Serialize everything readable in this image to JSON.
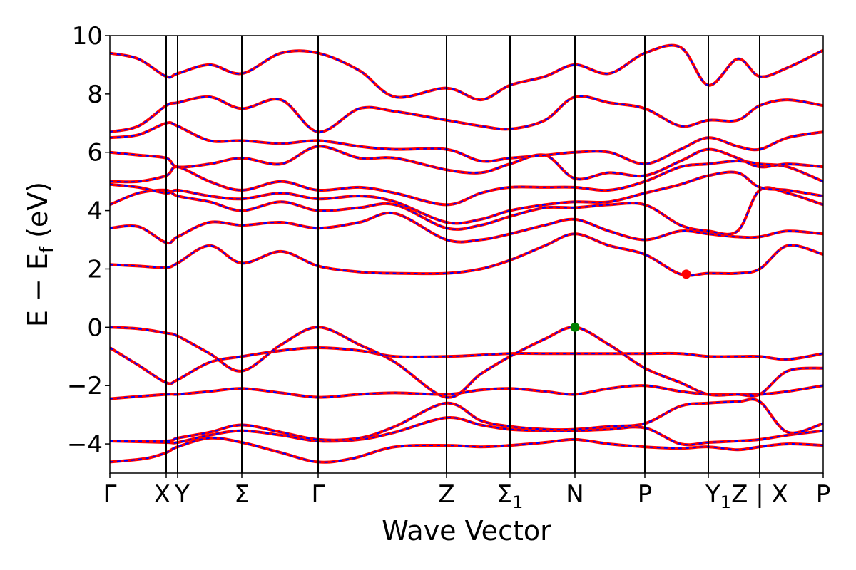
{
  "chart_data": {
    "type": "line",
    "title": "",
    "xlabel": "Wave Vector",
    "ylabel_parts": {
      "main": "E − E",
      "sub": "f",
      "unit": " (eV)"
    },
    "ylim": [
      -5,
      10
    ],
    "yticks": [
      {
        "value": 10,
        "label": "10"
      },
      {
        "value": 8,
        "label": "8"
      },
      {
        "value": 6,
        "label": "6"
      },
      {
        "value": 4,
        "label": "4"
      },
      {
        "value": 2,
        "label": "2"
      },
      {
        "value": 0,
        "label": "0"
      },
      {
        "value": -2,
        "label": "−2"
      },
      {
        "value": -4,
        "label": "−4"
      }
    ],
    "kpath": [
      {
        "label": "Γ",
        "pos": 0.0
      },
      {
        "label": "X",
        "pos": 0.079
      },
      {
        "label": "Y",
        "pos": 0.095
      },
      {
        "label": "Σ",
        "pos": 0.185
      },
      {
        "label": "Γ",
        "pos": 0.292
      },
      {
        "label": "Z",
        "pos": 0.472
      },
      {
        "label": "Σ",
        "sub": "1",
        "pos": 0.561
      },
      {
        "label": "N",
        "pos": 0.652
      },
      {
        "label": "P",
        "pos": 0.75
      },
      {
        "label": "Y",
        "sub": "1",
        "pos": 0.839
      },
      {
        "label": "Z | X",
        "pos": 0.911
      },
      {
        "label": "P",
        "pos": 1.0
      }
    ],
    "series_colors": {
      "primary": "#ff0000",
      "overlay": "#0000ff"
    },
    "markers": [
      {
        "label_role": "VBM",
        "x": 0.652,
        "y": 0.0,
        "color": "#008000"
      },
      {
        "label_role": "CBM",
        "x": 0.808,
        "y": 1.82,
        "color": "#ff0000"
      }
    ],
    "bands": [
      [
        [
          0,
          -4.62
        ],
        [
          0.05,
          -4.5
        ],
        [
          0.079,
          -4.3
        ],
        [
          0.095,
          -4.1
        ],
        [
          0.14,
          -3.8
        ],
        [
          0.185,
          -3.95
        ],
        [
          0.24,
          -4.3
        ],
        [
          0.292,
          -4.62
        ],
        [
          0.34,
          -4.5
        ],
        [
          0.4,
          -4.1
        ],
        [
          0.472,
          -4.05
        ],
        [
          0.52,
          -4.1
        ],
        [
          0.561,
          -4.05
        ],
        [
          0.61,
          -3.95
        ],
        [
          0.652,
          -3.85
        ],
        [
          0.7,
          -4.0
        ],
        [
          0.75,
          -4.1
        ],
        [
          0.8,
          -4.15
        ],
        [
          0.839,
          -4.1
        ],
        [
          0.88,
          -4.2
        ],
        [
          0.911,
          -4.1
        ],
        [
          0.95,
          -4.0
        ],
        [
          1.0,
          -4.05
        ]
      ],
      [
        [
          0,
          -3.9
        ],
        [
          0.079,
          -3.95
        ],
        [
          0.095,
          -3.95
        ],
        [
          0.14,
          -3.7
        ],
        [
          0.185,
          -3.55
        ],
        [
          0.24,
          -3.7
        ],
        [
          0.292,
          -3.9
        ],
        [
          0.35,
          -3.85
        ],
        [
          0.4,
          -3.6
        ],
        [
          0.472,
          -3.1
        ],
        [
          0.52,
          -3.35
        ],
        [
          0.561,
          -3.5
        ],
        [
          0.61,
          -3.55
        ],
        [
          0.652,
          -3.55
        ],
        [
          0.7,
          -3.5
        ],
        [
          0.75,
          -3.45
        ],
        [
          0.8,
          -4.0
        ],
        [
          0.839,
          -3.95
        ],
        [
          0.88,
          -3.9
        ],
        [
          0.911,
          -3.85
        ],
        [
          0.95,
          -3.7
        ],
        [
          1.0,
          -3.55
        ]
      ],
      [
        [
          0,
          -3.9
        ],
        [
          0.079,
          -3.9
        ],
        [
          0.095,
          -3.8
        ],
        [
          0.14,
          -3.6
        ],
        [
          0.185,
          -3.35
        ],
        [
          0.24,
          -3.6
        ],
        [
          0.292,
          -3.85
        ],
        [
          0.35,
          -3.8
        ],
        [
          0.4,
          -3.4
        ],
        [
          0.472,
          -2.6
        ],
        [
          0.52,
          -3.2
        ],
        [
          0.561,
          -3.4
        ],
        [
          0.61,
          -3.5
        ],
        [
          0.652,
          -3.5
        ],
        [
          0.7,
          -3.4
        ],
        [
          0.75,
          -3.3
        ],
        [
          0.8,
          -2.7
        ],
        [
          0.839,
          -2.6
        ],
        [
          0.88,
          -2.55
        ],
        [
          0.911,
          -2.55
        ],
        [
          0.95,
          -3.6
        ],
        [
          1.0,
          -3.3
        ]
      ],
      [
        [
          0,
          -2.45
        ],
        [
          0.079,
          -2.3
        ],
        [
          0.095,
          -2.3
        ],
        [
          0.14,
          -2.2
        ],
        [
          0.185,
          -2.1
        ],
        [
          0.24,
          -2.25
        ],
        [
          0.292,
          -2.4
        ],
        [
          0.35,
          -2.3
        ],
        [
          0.4,
          -2.25
        ],
        [
          0.472,
          -2.3
        ],
        [
          0.52,
          -2.15
        ],
        [
          0.561,
          -2.1
        ],
        [
          0.61,
          -2.2
        ],
        [
          0.652,
          -2.3
        ],
        [
          0.7,
          -2.1
        ],
        [
          0.75,
          -2.0
        ],
        [
          0.8,
          -2.2
        ],
        [
          0.839,
          -2.3
        ],
        [
          0.88,
          -2.3
        ],
        [
          0.911,
          -2.3
        ],
        [
          0.95,
          -2.2
        ],
        [
          1.0,
          -2.0
        ]
      ],
      [
        [
          0,
          -0.7
        ],
        [
          0.04,
          -1.3
        ],
        [
          0.079,
          -1.9
        ],
        [
          0.095,
          -1.8
        ],
        [
          0.14,
          -1.2
        ],
        [
          0.185,
          -1.0
        ],
        [
          0.24,
          -0.8
        ],
        [
          0.292,
          -0.7
        ],
        [
          0.35,
          -0.8
        ],
        [
          0.4,
          -1.0
        ],
        [
          0.472,
          -1.0
        ],
        [
          0.52,
          -0.95
        ],
        [
          0.561,
          -0.9
        ],
        [
          0.61,
          -0.9
        ],
        [
          0.652,
          -0.9
        ],
        [
          0.7,
          -0.9
        ],
        [
          0.75,
          -0.9
        ],
        [
          0.8,
          -0.9
        ],
        [
          0.839,
          -1.0
        ],
        [
          0.88,
          -1.0
        ],
        [
          0.911,
          -1.0
        ],
        [
          0.95,
          -1.1
        ],
        [
          1.0,
          -0.9
        ]
      ],
      [
        [
          0,
          0.0
        ],
        [
          0.04,
          -0.05
        ],
        [
          0.079,
          -0.2
        ],
        [
          0.095,
          -0.3
        ],
        [
          0.14,
          -0.9
        ],
        [
          0.185,
          -1.5
        ],
        [
          0.24,
          -0.6
        ],
        [
          0.292,
          0.0
        ],
        [
          0.35,
          -0.6
        ],
        [
          0.4,
          -1.2
        ],
        [
          0.472,
          -2.4
        ],
        [
          0.52,
          -1.6
        ],
        [
          0.561,
          -1.0
        ],
        [
          0.61,
          -0.4
        ],
        [
          0.652,
          0.0
        ],
        [
          0.7,
          -0.6
        ],
        [
          0.75,
          -1.4
        ],
        [
          0.8,
          -1.9
        ],
        [
          0.839,
          -2.3
        ],
        [
          0.88,
          -2.3
        ],
        [
          0.911,
          -2.3
        ],
        [
          0.95,
          -1.5
        ],
        [
          1.0,
          -1.4
        ]
      ],
      [
        [
          0,
          2.15
        ],
        [
          0.04,
          2.1
        ],
        [
          0.079,
          2.05
        ],
        [
          0.095,
          2.2
        ],
        [
          0.14,
          2.8
        ],
        [
          0.185,
          2.2
        ],
        [
          0.24,
          2.6
        ],
        [
          0.292,
          2.1
        ],
        [
          0.35,
          1.9
        ],
        [
          0.4,
          1.85
        ],
        [
          0.472,
          1.85
        ],
        [
          0.52,
          2.0
        ],
        [
          0.561,
          2.3
        ],
        [
          0.61,
          2.8
        ],
        [
          0.652,
          3.2
        ],
        [
          0.7,
          2.8
        ],
        [
          0.75,
          2.5
        ],
        [
          0.8,
          1.82
        ],
        [
          0.839,
          1.85
        ],
        [
          0.88,
          1.85
        ],
        [
          0.911,
          2.0
        ],
        [
          0.95,
          2.8
        ],
        [
          1.0,
          2.5
        ]
      ],
      [
        [
          0,
          3.4
        ],
        [
          0.04,
          3.45
        ],
        [
          0.079,
          2.9
        ],
        [
          0.095,
          3.1
        ],
        [
          0.14,
          3.6
        ],
        [
          0.185,
          3.5
        ],
        [
          0.24,
          3.6
        ],
        [
          0.292,
          3.4
        ],
        [
          0.35,
          3.6
        ],
        [
          0.4,
          3.9
        ],
        [
          0.472,
          3.0
        ],
        [
          0.52,
          3.0
        ],
        [
          0.561,
          3.2
        ],
        [
          0.61,
          3.5
        ],
        [
          0.652,
          3.7
        ],
        [
          0.7,
          3.3
        ],
        [
          0.75,
          3.0
        ],
        [
          0.8,
          3.3
        ],
        [
          0.839,
          3.2
        ],
        [
          0.88,
          3.1
        ],
        [
          0.911,
          3.1
        ],
        [
          0.95,
          3.3
        ],
        [
          1.0,
          3.2
        ]
      ],
      [
        [
          0,
          4.2
        ],
        [
          0.04,
          4.6
        ],
        [
          0.079,
          4.7
        ],
        [
          0.095,
          4.5
        ],
        [
          0.14,
          4.3
        ],
        [
          0.185,
          4.0
        ],
        [
          0.24,
          4.3
        ],
        [
          0.292,
          4.0
        ],
        [
          0.35,
          4.1
        ],
        [
          0.4,
          4.2
        ],
        [
          0.472,
          3.4
        ],
        [
          0.52,
          3.5
        ],
        [
          0.561,
          3.8
        ],
        [
          0.61,
          4.1
        ],
        [
          0.652,
          4.1
        ],
        [
          0.7,
          4.2
        ],
        [
          0.75,
          4.2
        ],
        [
          0.8,
          3.5
        ],
        [
          0.839,
          3.3
        ],
        [
          0.88,
          3.3
        ],
        [
          0.911,
          4.7
        ],
        [
          0.95,
          4.6
        ],
        [
          1.0,
          4.2
        ]
      ],
      [
        [
          0,
          4.9
        ],
        [
          0.04,
          4.8
        ],
        [
          0.079,
          4.6
        ],
        [
          0.095,
          4.7
        ],
        [
          0.14,
          4.5
        ],
        [
          0.185,
          4.4
        ],
        [
          0.24,
          4.6
        ],
        [
          0.292,
          4.4
        ],
        [
          0.35,
          4.5
        ],
        [
          0.4,
          4.3
        ],
        [
          0.472,
          3.6
        ],
        [
          0.52,
          3.7
        ],
        [
          0.561,
          4.0
        ],
        [
          0.61,
          4.2
        ],
        [
          0.652,
          4.3
        ],
        [
          0.7,
          4.3
        ],
        [
          0.75,
          4.6
        ],
        [
          0.8,
          4.9
        ],
        [
          0.839,
          5.2
        ],
        [
          0.88,
          5.3
        ],
        [
          0.911,
          4.8
        ],
        [
          0.95,
          4.7
        ],
        [
          1.0,
          4.5
        ]
      ],
      [
        [
          0,
          5.0
        ],
        [
          0.04,
          5.0
        ],
        [
          0.079,
          5.2
        ],
        [
          0.095,
          5.5
        ],
        [
          0.14,
          5.0
        ],
        [
          0.185,
          4.7
        ],
        [
          0.24,
          5.0
        ],
        [
          0.292,
          4.7
        ],
        [
          0.35,
          4.8
        ],
        [
          0.4,
          4.6
        ],
        [
          0.472,
          4.2
        ],
        [
          0.52,
          4.6
        ],
        [
          0.561,
          4.8
        ],
        [
          0.61,
          4.8
        ],
        [
          0.652,
          4.8
        ],
        [
          0.7,
          4.7
        ],
        [
          0.75,
          5.0
        ],
        [
          0.8,
          5.5
        ],
        [
          0.839,
          5.6
        ],
        [
          0.88,
          5.7
        ],
        [
          0.911,
          5.6
        ],
        [
          0.95,
          5.5
        ],
        [
          1.0,
          5.0
        ]
      ],
      [
        [
          0,
          6.0
        ],
        [
          0.04,
          5.9
        ],
        [
          0.079,
          5.8
        ],
        [
          0.095,
          5.5
        ],
        [
          0.14,
          5.6
        ],
        [
          0.185,
          5.8
        ],
        [
          0.24,
          5.6
        ],
        [
          0.292,
          6.2
        ],
        [
          0.35,
          5.8
        ],
        [
          0.4,
          5.8
        ],
        [
          0.472,
          5.4
        ],
        [
          0.52,
          5.3
        ],
        [
          0.561,
          5.6
        ],
        [
          0.61,
          5.9
        ],
        [
          0.652,
          5.1
        ],
        [
          0.7,
          5.3
        ],
        [
          0.75,
          5.2
        ],
        [
          0.8,
          5.7
        ],
        [
          0.839,
          6.1
        ],
        [
          0.88,
          5.8
        ],
        [
          0.911,
          5.5
        ],
        [
          0.95,
          5.6
        ],
        [
          1.0,
          5.5
        ]
      ],
      [
        [
          0,
          6.5
        ],
        [
          0.04,
          6.6
        ],
        [
          0.079,
          7.0
        ],
        [
          0.095,
          6.9
        ],
        [
          0.14,
          6.4
        ],
        [
          0.185,
          6.4
        ],
        [
          0.24,
          6.3
        ],
        [
          0.292,
          6.4
        ],
        [
          0.35,
          6.2
        ],
        [
          0.4,
          6.1
        ],
        [
          0.472,
          6.1
        ],
        [
          0.52,
          5.7
        ],
        [
          0.561,
          5.8
        ],
        [
          0.61,
          5.9
        ],
        [
          0.652,
          6.0
        ],
        [
          0.7,
          6.0
        ],
        [
          0.75,
          5.6
        ],
        [
          0.8,
          6.1
        ],
        [
          0.839,
          6.5
        ],
        [
          0.88,
          6.2
        ],
        [
          0.911,
          6.1
        ],
        [
          0.95,
          6.5
        ],
        [
          1.0,
          6.7
        ]
      ],
      [
        [
          0,
          6.7
        ],
        [
          0.04,
          6.9
        ],
        [
          0.079,
          7.6
        ],
        [
          0.095,
          7.7
        ],
        [
          0.14,
          7.9
        ],
        [
          0.185,
          7.5
        ],
        [
          0.24,
          7.8
        ],
        [
          0.292,
          6.7
        ],
        [
          0.35,
          7.5
        ],
        [
          0.4,
          7.4
        ],
        [
          0.472,
          7.1
        ],
        [
          0.52,
          6.9
        ],
        [
          0.561,
          6.8
        ],
        [
          0.61,
          7.1
        ],
        [
          0.652,
          7.9
        ],
        [
          0.7,
          7.7
        ],
        [
          0.75,
          7.5
        ],
        [
          0.8,
          6.9
        ],
        [
          0.839,
          7.1
        ],
        [
          0.88,
          7.1
        ],
        [
          0.911,
          7.6
        ],
        [
          0.95,
          7.8
        ],
        [
          1.0,
          7.6
        ]
      ],
      [
        [
          0,
          9.4
        ],
        [
          0.04,
          9.2
        ],
        [
          0.079,
          8.6
        ],
        [
          0.095,
          8.7
        ],
        [
          0.14,
          9.0
        ],
        [
          0.185,
          8.7
        ],
        [
          0.24,
          9.4
        ],
        [
          0.292,
          9.4
        ],
        [
          0.35,
          8.8
        ],
        [
          0.4,
          7.9
        ],
        [
          0.472,
          8.2
        ],
        [
          0.52,
          7.8
        ],
        [
          0.561,
          8.3
        ],
        [
          0.61,
          8.6
        ],
        [
          0.652,
          9.0
        ],
        [
          0.7,
          8.7
        ],
        [
          0.75,
          9.4
        ],
        [
          0.8,
          9.6
        ],
        [
          0.839,
          8.3
        ],
        [
          0.88,
          9.2
        ],
        [
          0.911,
          8.6
        ],
        [
          0.95,
          8.9
        ],
        [
          1.0,
          9.5
        ]
      ]
    ]
  }
}
